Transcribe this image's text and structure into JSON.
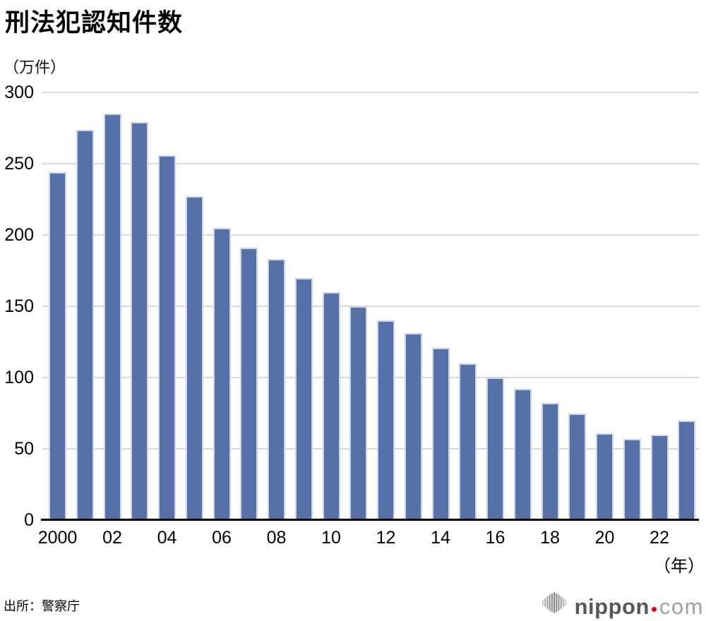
{
  "page": {
    "title": "刑法犯認知件数",
    "unit_label": "（万件）",
    "year_label": "（年）",
    "source": "出所：警察庁"
  },
  "logo": {
    "name": "nippon",
    "tld": "com",
    "icon": "soundwave-bars-icon"
  },
  "colors": {
    "bar": "#5571a8",
    "bar_edge": "#ccd4ea",
    "gridline": "#d9d9d9",
    "axis": "#000000",
    "text": "#000000",
    "logo_dark": "#595757",
    "logo_light": "#a0a1a1",
    "logo_dot": "#e60012"
  },
  "chart_data": {
    "type": "bar",
    "title": "刑法犯認知件数",
    "ylabel": "（万件）",
    "xlabel": "（年）",
    "ylim": [
      0,
      300
    ],
    "yticks": [
      0,
      50,
      100,
      150,
      200,
      250,
      300
    ],
    "grid": true,
    "legend": "none",
    "categories": [
      "2000",
      "2001",
      "2002",
      "2003",
      "2004",
      "2005",
      "2006",
      "2007",
      "2008",
      "2009",
      "2010",
      "2011",
      "2012",
      "2013",
      "2014",
      "2015",
      "2016",
      "2017",
      "2018",
      "2019",
      "2020",
      "2021",
      "2022",
      "2023"
    ],
    "xtick_labels": [
      "2000",
      "",
      "02",
      "",
      "04",
      "",
      "06",
      "",
      "08",
      "",
      "10",
      "",
      "12",
      "",
      "14",
      "",
      "16",
      "",
      "18",
      "",
      "20",
      "",
      "22",
      ""
    ],
    "values": [
      244,
      274,
      285,
      279,
      256,
      227,
      205,
      191,
      183,
      170,
      160,
      150,
      140,
      131,
      121,
      110,
      100,
      92,
      82,
      75,
      61,
      57,
      60,
      70
    ]
  }
}
